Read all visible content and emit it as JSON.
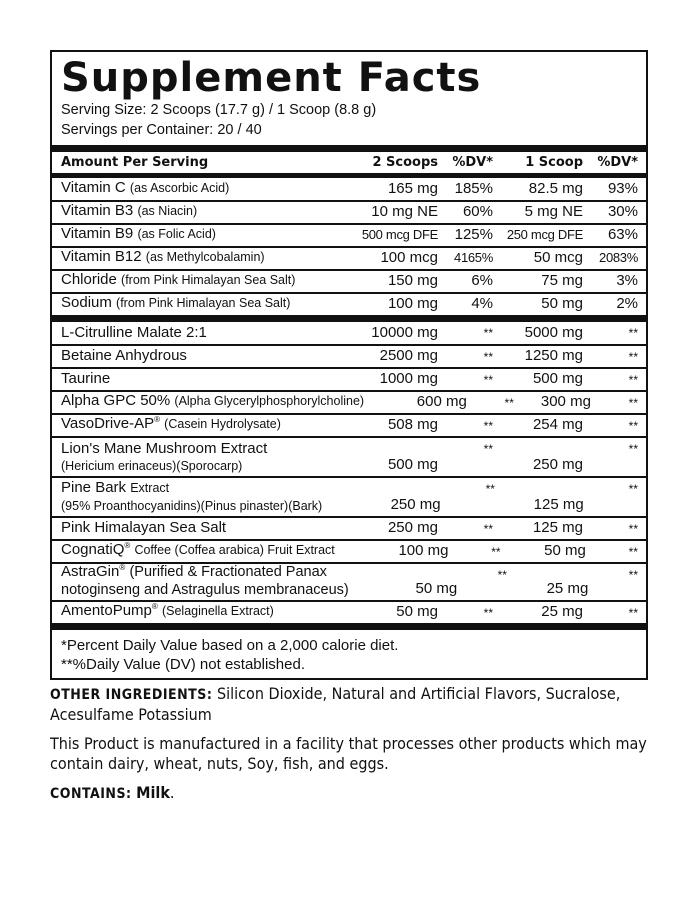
{
  "title": "Supplement Facts",
  "serving_size": "Serving Size: 2 Scoops (17.7 g) / 1 Scoop (8.8 g)",
  "servings_per_container": "Servings per Container: 20 / 40",
  "header": {
    "amount": "Amount Per Serving",
    "col1": "2 Scoops",
    "col2": "%DV*",
    "col3": "1 Scoop",
    "col4": "%DV*"
  },
  "vitamins": [
    {
      "name": "Vitamin C",
      "note": "(as Ascorbic Acid)",
      "v1": "165 mg",
      "d1": "185%",
      "v2": "82.5 mg",
      "d2": "93%"
    },
    {
      "name": "Vitamin B3",
      "note": "(as Niacin)",
      "v1": "10 mg NE",
      "d1": "60%",
      "v2": "5 mg NE",
      "d2": "30%"
    },
    {
      "name": "Vitamin B9",
      "note": "(as Folic Acid)",
      "v1": "500 mcg DFE",
      "d1": "125%",
      "v2": "250 mcg DFE",
      "d2": "63%"
    },
    {
      "name": "Vitamin B12",
      "note": "(as Methylcobalamin)",
      "v1": "100 mcg",
      "d1": "4165%",
      "v2": "50 mcg",
      "d2": "2083%"
    },
    {
      "name": "Chloride",
      "note": "(from Pink Himalayan Sea Salt)",
      "v1": "150 mg",
      "d1": "6%",
      "v2": "75 mg",
      "d2": "3%"
    },
    {
      "name": "Sodium",
      "note": "(from Pink Himalayan Sea Salt)",
      "v1": "100 mg",
      "d1": "4%",
      "v2": "50 mg",
      "d2": "2%"
    }
  ],
  "ingredients": [
    {
      "name": "L-Citrulline Malate 2:1",
      "v1": "10000 mg",
      "d1": "**",
      "v2": "5000 mg",
      "d2": "**"
    },
    {
      "name": "Betaine Anhydrous",
      "v1": "2500 mg",
      "d1": "**",
      "v2": "1250 mg",
      "d2": "**"
    },
    {
      "name": "Taurine",
      "v1": "1000 mg",
      "d1": "**",
      "v2": "500 mg",
      "d2": "**"
    },
    {
      "name": "Alpha GPC 50%",
      "note": "(Alpha Glycerylphosphorylcholine)",
      "v1": "600 mg",
      "d1": "**",
      "v2": "300 mg",
      "d2": "**"
    },
    {
      "name": "VasoDrive-AP",
      "sup": "®",
      "note": "(Casein Hydrolysate)",
      "v1": "508 mg",
      "d1": "**",
      "v2": "254 mg",
      "d2": "**"
    },
    {
      "name": "Lion's Mane Mushroom Extract",
      "line2": "(Hericium erinaceus)(Sporocarp)",
      "v1": "500 mg",
      "d1": "**",
      "v2": "250 mg",
      "d2": "**"
    },
    {
      "name": "Pine Bark",
      "note": "Extract",
      "line2": "(95% Proanthocyanidins)(Pinus pinaster)(Bark)",
      "v1": "250 mg",
      "d1": "**",
      "v2": "125 mg",
      "d2": "**"
    },
    {
      "name": "Pink Himalayan Sea Salt",
      "v1": "250 mg",
      "d1": "**",
      "v2": "125 mg",
      "d2": "**"
    },
    {
      "name": "CognatiQ",
      "sup": "®",
      "note": "Coffee (Coffea arabica) Fruit Extract",
      "v1": "100 mg",
      "d1": "**",
      "v2": "50 mg",
      "d2": "**"
    },
    {
      "name": "AstraGin",
      "sup": "®",
      "note": "(Purified & Fractionated Panax",
      "line2": "notoginseng and Astragulus membranaceus)",
      "v1": "50 mg",
      "d1": "**",
      "v2": "25 mg",
      "d2": "**"
    },
    {
      "name": "AmentoPump",
      "sup": "®",
      "note": "(Selaginella Extract)",
      "v1": "50 mg",
      "d1": "**",
      "v2": "25 mg",
      "d2": "**"
    }
  ],
  "footnotes": [
    "*Percent Daily Value based on a 2,000 calorie diet.",
    "**%Daily Value (DV) not established."
  ],
  "other_ingredients": {
    "label": "OTHER INGREDIENTS:",
    "text": "Silicon Dioxide, Natural and Artificial Flavors, Sucralose, Acesulfame Potassium"
  },
  "facility_note": "This Product is manufactured in a facility that processes other products which may contain dairy, wheat, nuts, Soy, fish, and eggs.",
  "contains": {
    "label": "CONTAINS:",
    "text": "Milk",
    "end": "."
  }
}
